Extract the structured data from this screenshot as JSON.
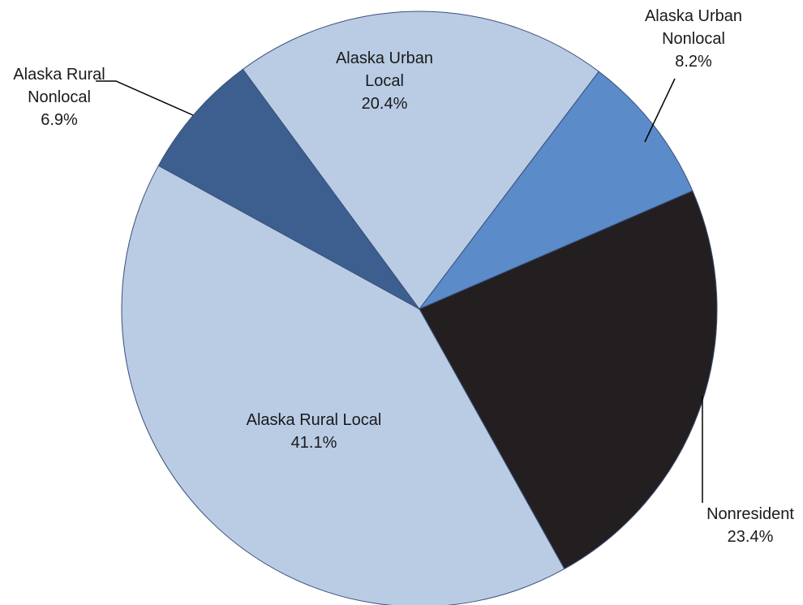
{
  "chart_data": {
    "type": "pie",
    "categories": [
      "Nonresident",
      "Alaska Rural Local",
      "Alaska Rural Nonlocal",
      "Alaska Urban Local",
      "Alaska Urban Nonlocal"
    ],
    "values": [
      23.4,
      41.1,
      6.9,
      20.4,
      8.2
    ],
    "value_labels": [
      "23.4%",
      "41.1%",
      "6.9%",
      "20.4%",
      "8.2%"
    ],
    "colors": [
      "#231f20",
      "#b9cce4",
      "#3d5f8f",
      "#b9cce4",
      "#5b8bc9"
    ]
  }
}
